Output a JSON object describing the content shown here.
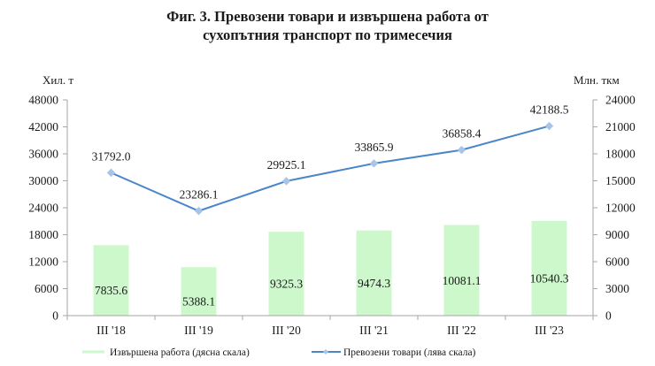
{
  "title": {
    "line1": "Фиг. 3. Превозени товари и извършена работа от",
    "line2": "сухопътния транспорт по тримесечия"
  },
  "axes": {
    "left_unit": "Хил. т",
    "right_unit": "Млн. ткм"
  },
  "legend": {
    "bars_label": "Извършена работа (дясна скала)",
    "line_label": "Превозени товари (лява скала)"
  },
  "colors": {
    "bar": "#ccf8cc",
    "line": "#4a86c8",
    "marker": "#a8c4e6",
    "axis": "#a6a6a6"
  },
  "chart_data": {
    "type": "bar+line",
    "title": "Фиг. 3. Превозени товари и извършена работа от сухопътния транспорт по тримесечия",
    "categories": [
      "III '18",
      "III '19",
      "III '20",
      "III '21",
      "III '22",
      "III '23"
    ],
    "series": [
      {
        "name": "Извършена работа (дясна скала)",
        "type": "bar",
        "axis": "right",
        "values": [
          7835.6,
          5388.1,
          9325.3,
          9474.3,
          10081.1,
          10540.3
        ]
      },
      {
        "name": "Превозени товари (лява скала)",
        "type": "line",
        "axis": "left",
        "values": [
          31792.0,
          23286.1,
          29925.1,
          33865.9,
          36858.4,
          42188.5
        ]
      }
    ],
    "ylabel_left": "Хил. т",
    "ylabel_right": "Млн. ткм",
    "ylim_left": [
      0,
      48000
    ],
    "ylim_right": [
      0,
      24000
    ],
    "yticks_left": [
      0,
      6000,
      12000,
      18000,
      24000,
      30000,
      36000,
      42000,
      48000
    ],
    "yticks_right": [
      0,
      3000,
      6000,
      9000,
      12000,
      15000,
      18000,
      21000,
      24000
    ],
    "grid": false,
    "legend_position": "bottom"
  }
}
